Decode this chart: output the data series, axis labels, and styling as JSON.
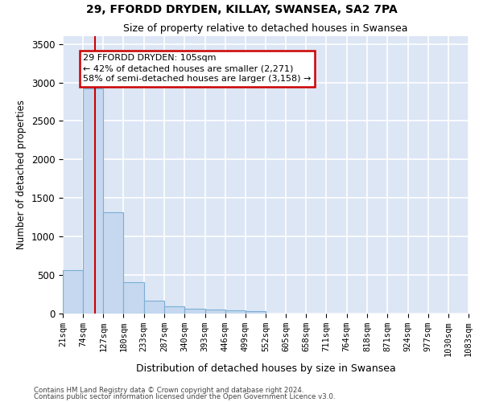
{
  "title": "29, FFORDD DRYDEN, KILLAY, SWANSEA, SA2 7PA",
  "subtitle": "Size of property relative to detached houses in Swansea",
  "xlabel": "Distribution of detached houses by size in Swansea",
  "ylabel": "Number of detached properties",
  "bin_edges": [
    21,
    74,
    127,
    180,
    233,
    287,
    340,
    393,
    446,
    499,
    552,
    605,
    658,
    711,
    764,
    818,
    871,
    924,
    977,
    1030,
    1083
  ],
  "bar_heights": [
    560,
    2920,
    1320,
    410,
    170,
    90,
    65,
    55,
    45,
    30,
    0,
    0,
    0,
    0,
    0,
    0,
    0,
    0,
    0,
    0
  ],
  "bar_color": "#c5d8ef",
  "bar_edgecolor": "#7bafd4",
  "background_color": "#dce6f5",
  "grid_color": "#ffffff",
  "property_size": 105,
  "property_label": "29 FFORDD DRYDEN: 105sqm",
  "annotation_line1": "← 42% of detached houses are smaller (2,271)",
  "annotation_line2": "58% of semi-detached houses are larger (3,158) →",
  "vline_color": "#cc0000",
  "annotation_box_color": "#cc0000",
  "ylim": [
    0,
    3600
  ],
  "yticks": [
    0,
    500,
    1000,
    1500,
    2000,
    2500,
    3000,
    3500
  ],
  "footer_line1": "Contains HM Land Registry data © Crown copyright and database right 2024.",
  "footer_line2": "Contains public sector information licensed under the Open Government Licence v3.0."
}
